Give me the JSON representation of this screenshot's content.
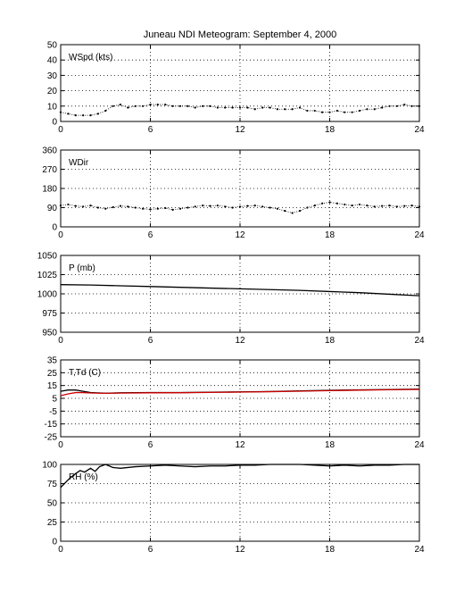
{
  "figure": {
    "title": "Juneau NDI Meteogram: September  4, 2000"
  },
  "chart_data": [
    {
      "type": "scatter",
      "label": "WSpd (kts)",
      "xlim": [
        0,
        24
      ],
      "ylim": [
        0,
        50
      ],
      "xticks": [
        0,
        6,
        12,
        18,
        24
      ],
      "yticks": [
        0,
        10,
        20,
        30,
        40,
        50
      ],
      "grid": true,
      "series": [
        {
          "color": "#000000",
          "x": [
            0,
            0.5,
            1,
            1.5,
            2,
            2.5,
            3,
            3.5,
            4,
            4.5,
            5,
            5.5,
            6,
            6.5,
            7,
            7.5,
            8,
            8.5,
            9,
            9.5,
            10,
            10.5,
            11,
            11.5,
            12,
            12.5,
            13,
            13.5,
            14,
            14.5,
            15,
            15.5,
            16,
            16.5,
            17,
            17.5,
            18,
            18.5,
            19,
            19.5,
            20,
            20.5,
            21,
            21.5,
            22,
            22.5,
            23,
            23.5,
            24
          ],
          "values": [
            6,
            5,
            4,
            4,
            4,
            5,
            7,
            10,
            11,
            9,
            10,
            10,
            11,
            11,
            11,
            10,
            10,
            10,
            9,
            10,
            10,
            9,
            9,
            9,
            9,
            9,
            8,
            9,
            9,
            8,
            8,
            8,
            9,
            7,
            7,
            6,
            6,
            7,
            6,
            6,
            7,
            8,
            8,
            9,
            10,
            10,
            11,
            10,
            10
          ]
        }
      ]
    },
    {
      "type": "scatter",
      "label": "WDir",
      "xlim": [
        0,
        24
      ],
      "ylim": [
        0,
        360
      ],
      "xticks": [
        0,
        6,
        12,
        18,
        24
      ],
      "yticks": [
        0,
        90,
        180,
        270,
        360
      ],
      "grid": true,
      "series": [
        {
          "color": "#000000",
          "x": [
            0,
            0.5,
            1,
            1.5,
            2,
            2.5,
            3,
            3.5,
            4,
            4.5,
            5,
            5.5,
            6,
            6.5,
            7,
            7.5,
            8,
            8.5,
            9,
            9.5,
            10,
            10.5,
            11,
            11.5,
            12,
            12.5,
            13,
            13.5,
            14,
            14.5,
            15,
            15.5,
            16,
            16.5,
            17,
            17.5,
            18,
            18.5,
            19,
            19.5,
            20,
            20.5,
            21,
            21.5,
            22,
            22.5,
            23,
            23.5,
            24
          ],
          "values": [
            100,
            105,
            98,
            95,
            100,
            90,
            85,
            92,
            98,
            95,
            90,
            85,
            82,
            85,
            88,
            80,
            85,
            90,
            95,
            100,
            98,
            100,
            95,
            90,
            95,
            98,
            100,
            95,
            90,
            85,
            75,
            65,
            75,
            90,
            100,
            110,
            115,
            110,
            105,
            100,
            105,
            100,
            95,
            98,
            100,
            95,
            98,
            100,
            95
          ]
        }
      ]
    },
    {
      "type": "line",
      "label": "P (mb)",
      "xlim": [
        0,
        24
      ],
      "ylim": [
        950,
        1050
      ],
      "xticks": [
        0,
        6,
        12,
        18,
        24
      ],
      "yticks": [
        950,
        975,
        1000,
        1025,
        1050
      ],
      "grid": true,
      "series": [
        {
          "color": "#000000",
          "x": [
            0,
            2,
            4,
            6,
            8,
            10,
            12,
            14,
            16,
            18,
            20,
            22,
            24
          ],
          "values": [
            1012,
            1011.5,
            1010.5,
            1009.5,
            1008.5,
            1007.5,
            1006.5,
            1005.5,
            1004.5,
            1003,
            1001.5,
            999.5,
            997.5
          ]
        }
      ]
    },
    {
      "type": "line",
      "label": "T,Td (C)",
      "xlim": [
        0,
        24
      ],
      "ylim": [
        -25,
        35
      ],
      "xticks": [
        0,
        6,
        12,
        18,
        24
      ],
      "yticks": [
        -25,
        -15,
        -5,
        5,
        15,
        25,
        35
      ],
      "grid": true,
      "series": [
        {
          "color": "#000000",
          "x": [
            0,
            0.5,
            1,
            1.5,
            2,
            3,
            4,
            6,
            8,
            10,
            12,
            14,
            16,
            18,
            20,
            22,
            24
          ],
          "values": [
            10.5,
            11.5,
            11.5,
            10.5,
            9.5,
            9,
            9.3,
            9.5,
            9.5,
            9.8,
            10,
            10.3,
            10.8,
            11.3,
            11.6,
            11.9,
            12.2
          ]
        },
        {
          "color": "#cc0000",
          "x": [
            0,
            0.5,
            1,
            1.5,
            2,
            3,
            4,
            6,
            8,
            10,
            12,
            14,
            16,
            18,
            20,
            22,
            24
          ],
          "values": [
            7,
            8.5,
            9.5,
            9.5,
            9.2,
            8.9,
            9.1,
            9.3,
            9.4,
            9.6,
            9.9,
            10.2,
            10.6,
            11,
            11.4,
            11.7,
            12
          ]
        }
      ]
    },
    {
      "type": "line",
      "label": "RH (%)",
      "xlim": [
        0,
        24
      ],
      "ylim": [
        0,
        100
      ],
      "xticks": [
        0,
        6,
        12,
        18,
        24
      ],
      "yticks": [
        0,
        25,
        50,
        75,
        100
      ],
      "grid": true,
      "series": [
        {
          "color": "#000000",
          "x": [
            0,
            0.2,
            0.5,
            0.8,
            1,
            1.3,
            1.6,
            2,
            2.3,
            2.6,
            3,
            3.5,
            4,
            5,
            6,
            7,
            8,
            9,
            10,
            11,
            12,
            13,
            14,
            15,
            16,
            17,
            18,
            19,
            20,
            21,
            22,
            23,
            24
          ],
          "values": [
            70,
            74,
            80,
            85,
            88,
            92,
            90,
            95,
            91,
            97,
            100,
            96,
            95,
            97,
            98,
            99,
            98,
            97,
            98,
            98,
            99,
            99,
            100,
            100,
            100,
            99,
            98,
            99,
            98,
            99,
            99,
            100,
            100
          ]
        }
      ]
    }
  ]
}
